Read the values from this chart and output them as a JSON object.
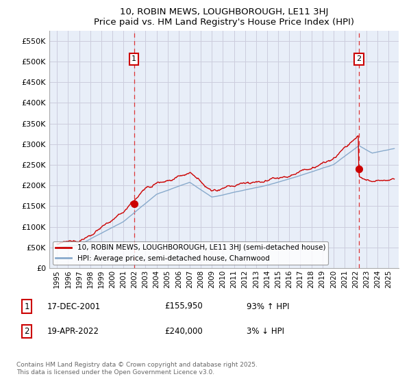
{
  "title": "10, ROBIN MEWS, LOUGHBOROUGH, LE11 3HJ",
  "subtitle": "Price paid vs. HM Land Registry's House Price Index (HPI)",
  "legend_line1": "10, ROBIN MEWS, LOUGHBOROUGH, LE11 3HJ (semi-detached house)",
  "legend_line2": "HPI: Average price, semi-detached house, Charnwood",
  "annotation1_label": "1",
  "annotation1_date": "17-DEC-2001",
  "annotation1_price": "£155,950",
  "annotation1_hpi": "93% ↑ HPI",
  "annotation2_label": "2",
  "annotation2_date": "19-APR-2022",
  "annotation2_price": "£240,000",
  "annotation2_hpi": "3% ↓ HPI",
  "footer": "Contains HM Land Registry data © Crown copyright and database right 2025.\nThis data is licensed under the Open Government Licence v3.0.",
  "ylim": [
    0,
    575000
  ],
  "yticks": [
    0,
    50000,
    100000,
    150000,
    200000,
    250000,
    300000,
    350000,
    400000,
    450000,
    500000,
    550000
  ],
  "red_color": "#cc0000",
  "blue_color": "#88aacc",
  "vline_color": "#dd3333",
  "grid_color": "#ccccdd",
  "bg_color": "#e8eef8",
  "sale1_year": 2001.96,
  "sale1_price": 155950,
  "sale2_year": 2022.29,
  "sale2_price": 240000
}
